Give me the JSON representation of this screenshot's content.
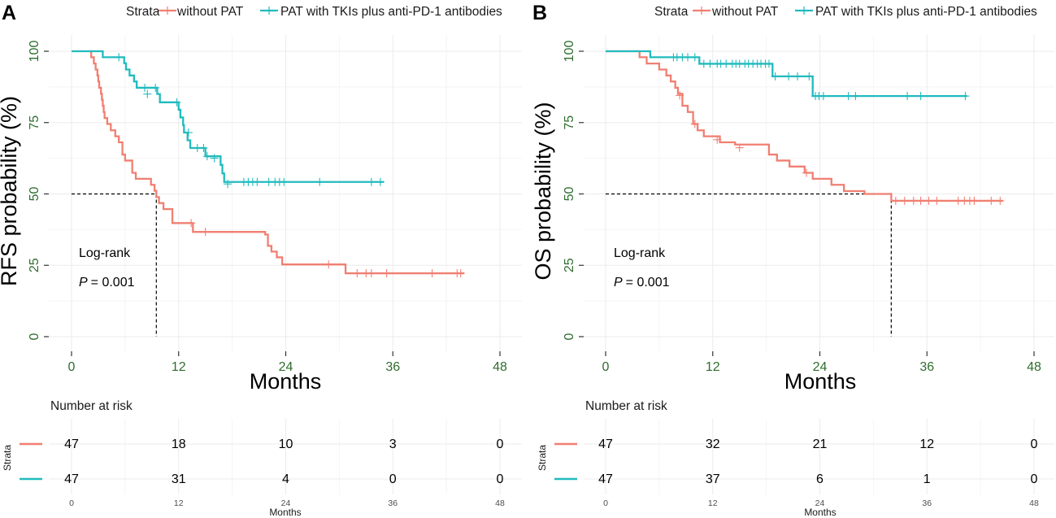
{
  "colors": {
    "without_pat": "#F07F72",
    "pat": "#21BBBE",
    "tick_text": "#2E6D2E"
  },
  "panels": [
    {
      "letter": "A",
      "legend": {
        "title": "Strata",
        "items": [
          "without PAT",
          "PAT with TKIs plus anti-PD-1 antibodies"
        ]
      },
      "annotation": {
        "test": "Log-rank",
        "p_label": "P",
        "p_value": "= 0.001"
      },
      "number_at_risk": {
        "title": "Number at risk",
        "strata_label": "Strata",
        "xlabel": "Months",
        "ticks": [
          "0",
          "12",
          "24",
          "36",
          "48"
        ],
        "rows": [
          {
            "name": "without PAT",
            "values": [
              "47",
              "18",
              "10",
              "3",
              "0"
            ]
          },
          {
            "name": "PAT with TKIs plus anti-PD-1 antibodies",
            "values": [
              "47",
              "31",
              "4",
              "0",
              "0"
            ]
          }
        ]
      }
    },
    {
      "letter": "B",
      "legend": {
        "title": "Strata",
        "items": [
          "without PAT",
          "PAT with TKIs plus anti-PD-1 antibodies"
        ]
      },
      "annotation": {
        "test": "Log-rank",
        "p_label": "P",
        "p_value": "= 0.001"
      },
      "number_at_risk": {
        "title": "Number at risk",
        "strata_label": "Strata",
        "xlabel": "Months",
        "ticks": [
          "0",
          "12",
          "24",
          "36",
          "48"
        ],
        "rows": [
          {
            "name": "without PAT",
            "values": [
              "47",
              "32",
              "21",
              "12",
              "0"
            ]
          },
          {
            "name": "PAT with TKIs plus anti-PD-1 antibodies",
            "values": [
              "47",
              "37",
              "6",
              "1",
              "0"
            ]
          }
        ]
      }
    }
  ],
  "chart_data": [
    {
      "type": "line",
      "title": "",
      "xlabel": "Months",
      "ylabel": "RFS probability (%)",
      "xlim": [
        0,
        48
      ],
      "ylim": [
        0,
        100
      ],
      "xticks": [
        0,
        12,
        24,
        36,
        48
      ],
      "yticks": [
        0,
        25,
        50,
        75,
        100
      ],
      "median": {
        "y": 50,
        "x": 9.5
      },
      "series": [
        {
          "name": "without PAT",
          "color": "#F07F72",
          "x_start": 2.0,
          "steps": [
            [
              2.0,
              100
            ],
            [
              2.2,
              97.9
            ],
            [
              2.5,
              95.7
            ],
            [
              2.7,
              93.6
            ],
            [
              2.9,
              91.5
            ],
            [
              3.0,
              89.4
            ],
            [
              3.1,
              87.2
            ],
            [
              3.3,
              85.1
            ],
            [
              3.4,
              83.0
            ],
            [
              3.5,
              80.9
            ],
            [
              3.6,
              78.7
            ],
            [
              3.7,
              76.6
            ],
            [
              4.0,
              74.5
            ],
            [
              4.4,
              72.3
            ],
            [
              4.9,
              70.2
            ],
            [
              5.3,
              68.1
            ],
            [
              5.7,
              63.8
            ],
            [
              6.0,
              61.7
            ],
            [
              6.8,
              57.4
            ],
            [
              7.2,
              55.3
            ],
            [
              8.9,
              53.2
            ],
            [
              9.3,
              51.1
            ],
            [
              9.5,
              48.9
            ],
            [
              9.8,
              46.8
            ],
            [
              10.3,
              44.7
            ],
            [
              11.3,
              39.8
            ],
            [
              13.6,
              36.7
            ],
            [
              21.7,
              35.8
            ],
            [
              22.0,
              31.8
            ],
            [
              22.4,
              29.8
            ],
            [
              23.0,
              27.8
            ],
            [
              23.6,
              25.3
            ],
            [
              30.7,
              22.2
            ]
          ],
          "x_end": 44.0,
          "censors": [
            [
              13.4,
              39.8
            ],
            [
              15.0,
              36.7
            ],
            [
              28.8,
              25.3
            ],
            [
              32.0,
              22.2
            ],
            [
              33.0,
              22.2
            ],
            [
              33.6,
              22.2
            ],
            [
              35.3,
              22.2
            ],
            [
              40.4,
              22.2
            ],
            [
              43.2,
              22.2
            ],
            [
              43.6,
              22.2
            ]
          ]
        },
        {
          "name": "PAT with TKIs plus anti-PD-1 antibodies",
          "color": "#21BBBE",
          "x_start": 0,
          "steps": [
            [
              0,
              100
            ],
            [
              3.5,
              97.9
            ],
            [
              5.9,
              95.8
            ],
            [
              6.1,
              93.6
            ],
            [
              6.5,
              91.5
            ],
            [
              7.0,
              89.4
            ],
            [
              7.3,
              87.2
            ],
            [
              9.6,
              85.0
            ],
            [
              9.9,
              82.1
            ],
            [
              12.0,
              79.5
            ],
            [
              12.2,
              76.8
            ],
            [
              12.5,
              74.1
            ],
            [
              12.6,
              71.5
            ],
            [
              13.0,
              68.8
            ],
            [
              13.3,
              66.1
            ],
            [
              15.0,
              63.2
            ],
            [
              16.7,
              60.2
            ],
            [
              16.9,
              57.2
            ],
            [
              17.1,
              54.2
            ]
          ],
          "x_end": 35.0,
          "censors": [
            [
              5.3,
              97.9
            ],
            [
              8.2,
              87.2
            ],
            [
              8.5,
              85.0
            ],
            [
              9.4,
              87.2
            ],
            [
              11.8,
              82.1
            ],
            [
              13.1,
              71.5
            ],
            [
              14.1,
              66.1
            ],
            [
              14.8,
              66.1
            ],
            [
              15.2,
              63.2
            ],
            [
              16.0,
              62.5
            ],
            [
              17.5,
              53.5
            ],
            [
              19.3,
              54.2
            ],
            [
              19.8,
              54.2
            ],
            [
              20.3,
              54.2
            ],
            [
              20.8,
              54.2
            ],
            [
              22.1,
              54.2
            ],
            [
              22.8,
              54.2
            ],
            [
              23.3,
              54.2
            ],
            [
              23.8,
              54.2
            ],
            [
              27.8,
              54.2
            ],
            [
              33.6,
              54.2
            ],
            [
              34.6,
              54.2
            ]
          ]
        }
      ]
    },
    {
      "type": "line",
      "title": "",
      "xlabel": "Months",
      "ylabel": "OS probability (%)",
      "xlim": [
        0,
        48
      ],
      "ylim": [
        0,
        100
      ],
      "xticks": [
        0,
        12,
        24,
        36,
        48
      ],
      "yticks": [
        0,
        25,
        50,
        75,
        100
      ],
      "median": {
        "y": 50,
        "x": 32.0
      },
      "series": [
        {
          "name": "without PAT",
          "color": "#F07F72",
          "x_start": 0,
          "steps": [
            [
              0,
              100
            ],
            [
              3.8,
              97.9
            ],
            [
              4.6,
              95.7
            ],
            [
              6.0,
              93.6
            ],
            [
              6.8,
              91.5
            ],
            [
              7.3,
              89.4
            ],
            [
              7.8,
              87.2
            ],
            [
              8.1,
              85.1
            ],
            [
              8.6,
              80.9
            ],
            [
              9.2,
              78.7
            ],
            [
              9.8,
              74.5
            ],
            [
              10.3,
              72.3
            ],
            [
              11.0,
              70.2
            ],
            [
              12.8,
              68.1
            ],
            [
              14.5,
              67.3
            ],
            [
              18.3,
              63.8
            ],
            [
              19.2,
              61.7
            ],
            [
              20.6,
              59.6
            ],
            [
              22.3,
              57.4
            ],
            [
              23.2,
              55.3
            ],
            [
              25.3,
              53.2
            ],
            [
              26.7,
              51.0
            ],
            [
              29.0,
              50.0
            ],
            [
              32.0,
              47.6
            ]
          ],
          "x_end": 44.5,
          "censors": [
            [
              8.3,
              84.5
            ],
            [
              10.0,
              74.5
            ],
            [
              12.5,
              69.0
            ],
            [
              15.0,
              66.2
            ],
            [
              22.5,
              57.4
            ],
            [
              32.5,
              47.6
            ],
            [
              33.5,
              47.6
            ],
            [
              34.5,
              47.6
            ],
            [
              35.3,
              47.6
            ],
            [
              36.2,
              47.6
            ],
            [
              37.1,
              47.6
            ],
            [
              39.5,
              47.6
            ],
            [
              40.2,
              47.6
            ],
            [
              40.8,
              47.6
            ],
            [
              41.3,
              47.6
            ],
            [
              43.2,
              47.6
            ],
            [
              44.2,
              47.6
            ]
          ]
        },
        {
          "name": "PAT with TKIs plus anti-PD-1 antibodies",
          "color": "#21BBBE",
          "x_start": 0,
          "steps": [
            [
              0,
              100
            ],
            [
              5.0,
              97.9
            ],
            [
              10.5,
              95.6
            ],
            [
              18.7,
              91.2
            ],
            [
              23.2,
              84.3
            ]
          ],
          "x_end": 40.5,
          "censors": [
            [
              7.6,
              97.9
            ],
            [
              8.0,
              97.9
            ],
            [
              8.6,
              97.9
            ],
            [
              9.2,
              97.9
            ],
            [
              10.0,
              97.9
            ],
            [
              11.0,
              95.6
            ],
            [
              11.7,
              95.6
            ],
            [
              12.5,
              95.6
            ],
            [
              12.9,
              95.6
            ],
            [
              13.5,
              95.6
            ],
            [
              14.2,
              95.6
            ],
            [
              14.6,
              95.6
            ],
            [
              15.0,
              95.6
            ],
            [
              15.6,
              95.6
            ],
            [
              16.0,
              95.6
            ],
            [
              16.5,
              95.6
            ],
            [
              17.0,
              95.6
            ],
            [
              17.4,
              95.6
            ],
            [
              17.9,
              95.6
            ],
            [
              18.3,
              95.6
            ],
            [
              19.0,
              91.2
            ],
            [
              20.5,
              91.2
            ],
            [
              21.5,
              91.2
            ],
            [
              22.8,
              91.2
            ],
            [
              23.5,
              84.3
            ],
            [
              23.9,
              84.3
            ],
            [
              24.4,
              84.3
            ],
            [
              27.2,
              84.3
            ],
            [
              28.0,
              84.3
            ],
            [
              33.8,
              84.3
            ],
            [
              35.3,
              84.3
            ],
            [
              40.3,
              84.3
            ]
          ]
        }
      ]
    }
  ]
}
